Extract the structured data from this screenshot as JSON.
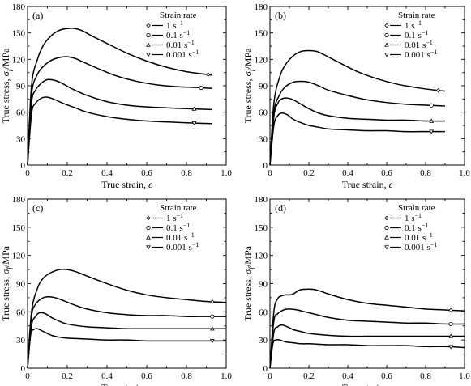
{
  "chart_data": [
    {
      "type": "line",
      "panel_label": "(a)",
      "xlabel": "True strain, ",
      "xlabel_symbol": "ε",
      "ylabel": "True stress, σ",
      "ylabel_sub": "f",
      "ylabel_unit": "/MPa",
      "xlim": [
        0,
        1.0
      ],
      "ylim": [
        0,
        180
      ],
      "xticks": [
        "0",
        "0.2",
        "0.4",
        "0.6",
        "0.8",
        "1.0"
      ],
      "yticks": [
        "0",
        "30",
        "60",
        "90",
        "120",
        "150",
        "180"
      ],
      "legend": {
        "title": "Strain rate",
        "items": [
          {
            "label": "1 s",
            "sup": "−1",
            "marker": "diamond"
          },
          {
            "label": "0.1 s",
            "sup": "−1",
            "marker": "circle"
          },
          {
            "label": "0.01 s",
            "sup": "−1",
            "marker": "triangle-up"
          },
          {
            "label": "0.001 s",
            "sup": "−1",
            "marker": "triangle-down"
          }
        ]
      },
      "series": [
        {
          "marker": "diamond",
          "x": [
            0,
            0.02,
            0.05,
            0.08,
            0.12,
            0.16,
            0.2,
            0.24,
            0.28,
            0.32,
            0.4,
            0.5,
            0.6,
            0.7,
            0.8,
            0.9,
            0.93
          ],
          "y": [
            0,
            90,
            120,
            136,
            147,
            153,
            155,
            155,
            152,
            147,
            138,
            127,
            118,
            111,
            106,
            103,
            102
          ]
        },
        {
          "marker": "circle",
          "x": [
            0,
            0.02,
            0.05,
            0.08,
            0.12,
            0.16,
            0.2,
            0.24,
            0.28,
            0.35,
            0.45,
            0.55,
            0.65,
            0.75,
            0.85,
            0.93
          ],
          "y": [
            0,
            80,
            103,
            112,
            119,
            122,
            123,
            121,
            117,
            110,
            101,
            95,
            91,
            89,
            88,
            87
          ]
        },
        {
          "marker": "triangle-up",
          "x": [
            0,
            0.02,
            0.04,
            0.07,
            0.1,
            0.14,
            0.18,
            0.22,
            0.3,
            0.4,
            0.5,
            0.6,
            0.7,
            0.8,
            0.93
          ],
          "y": [
            0,
            70,
            85,
            93,
            97,
            96,
            92,
            87,
            79,
            72,
            68,
            66,
            65,
            64,
            63
          ]
        },
        {
          "marker": "triangle-down",
          "x": [
            0,
            0.02,
            0.04,
            0.07,
            0.1,
            0.14,
            0.18,
            0.24,
            0.3,
            0.4,
            0.5,
            0.6,
            0.7,
            0.8,
            0.93
          ],
          "y": [
            0,
            58,
            70,
            76,
            77,
            74,
            70,
            65,
            60,
            55,
            52,
            50,
            49,
            48,
            47
          ]
        }
      ]
    },
    {
      "type": "line",
      "panel_label": "(b)",
      "xlabel": "True strain, ",
      "xlabel_symbol": "ε",
      "ylabel": "True stress, σ",
      "ylabel_sub": "f",
      "ylabel_unit": "/MPa",
      "xlim": [
        0,
        1.0
      ],
      "ylim": [
        0,
        180
      ],
      "xticks": [
        "0",
        "0.2",
        "0.4",
        "0.6",
        "0.8",
        "1.0"
      ],
      "yticks": [
        "0",
        "30",
        "60",
        "90",
        "120",
        "150",
        "180"
      ],
      "legend": {
        "title": "Strain rate",
        "items": [
          {
            "label": "1 s",
            "sup": "−1",
            "marker": "diamond"
          },
          {
            "label": "0.1 s",
            "sup": "−1",
            "marker": "circle"
          },
          {
            "label": "0.01 s",
            "sup": "−1",
            "marker": "triangle-up"
          },
          {
            "label": "0.001 s",
            "sup": "−1",
            "marker": "triangle-down"
          }
        ]
      },
      "series": [
        {
          "marker": "diamond",
          "x": [
            0,
            0.02,
            0.05,
            0.08,
            0.12,
            0.16,
            0.2,
            0.24,
            0.28,
            0.35,
            0.45,
            0.55,
            0.65,
            0.75,
            0.85,
            0.9
          ],
          "y": [
            0,
            70,
            100,
            114,
            124,
            129,
            130,
            129,
            125,
            117,
            106,
            98,
            92,
            88,
            85,
            84
          ]
        },
        {
          "marker": "circle",
          "x": [
            0,
            0.02,
            0.05,
            0.08,
            0.12,
            0.16,
            0.2,
            0.25,
            0.3,
            0.4,
            0.5,
            0.6,
            0.7,
            0.8,
            0.9
          ],
          "y": [
            0,
            60,
            80,
            89,
            94,
            95,
            94,
            90,
            85,
            79,
            74,
            71,
            69,
            68,
            67
          ]
        },
        {
          "marker": "triangle-up",
          "x": [
            0,
            0.02,
            0.04,
            0.06,
            0.09,
            0.12,
            0.16,
            0.2,
            0.25,
            0.3,
            0.4,
            0.5,
            0.6,
            0.7,
            0.8,
            0.9
          ],
          "y": [
            0,
            55,
            70,
            75,
            76,
            74,
            69,
            64,
            59,
            56,
            53,
            52,
            51,
            51,
            50,
            50
          ]
        },
        {
          "marker": "triangle-down",
          "x": [
            0,
            0.02,
            0.04,
            0.06,
            0.09,
            0.12,
            0.16,
            0.2,
            0.25,
            0.3,
            0.4,
            0.5,
            0.6,
            0.7,
            0.8,
            0.9
          ],
          "y": [
            0,
            45,
            56,
            59,
            57,
            52,
            48,
            45,
            43,
            41,
            40,
            39,
            39,
            38,
            38,
            38
          ]
        }
      ]
    },
    {
      "type": "line",
      "panel_label": "(c)",
      "xlabel": "True strain, ",
      "xlabel_symbol": "ε",
      "ylabel": "True stress, σ",
      "ylabel_sub": "f",
      "ylabel_unit": "/MPa",
      "xlim": [
        0,
        1.0
      ],
      "ylim": [
        0,
        180
      ],
      "xticks": [
        "0",
        "0.2",
        "0.4",
        "0.6",
        "0.8",
        "1.0"
      ],
      "yticks": [
        "0",
        "30",
        "60",
        "90",
        "120",
        "150",
        "180"
      ],
      "legend": {
        "title": "Strain rate",
        "items": [
          {
            "label": "1 s",
            "sup": "−1",
            "marker": "diamond"
          },
          {
            "label": "0.1 s",
            "sup": "−1",
            "marker": "circle"
          },
          {
            "label": "0.01 s",
            "sup": "−1",
            "marker": "triangle-up"
          },
          {
            "label": "0.001 s",
            "sup": "−1",
            "marker": "triangle-down"
          }
        ]
      },
      "series": [
        {
          "marker": "diamond",
          "x": [
            0,
            0.02,
            0.05,
            0.08,
            0.12,
            0.16,
            0.2,
            0.24,
            0.3,
            0.4,
            0.5,
            0.6,
            0.7,
            0.8,
            0.9,
            1.0
          ],
          "y": [
            0,
            60,
            85,
            96,
            102,
            105,
            105,
            103,
            98,
            90,
            83,
            78,
            75,
            73,
            71,
            70
          ]
        },
        {
          "marker": "circle",
          "x": [
            0,
            0.02,
            0.04,
            0.07,
            0.1,
            0.14,
            0.18,
            0.24,
            0.3,
            0.4,
            0.5,
            0.6,
            0.7,
            0.8,
            0.9,
            1.0
          ],
          "y": [
            0,
            55,
            68,
            74,
            76,
            75,
            72,
            67,
            63,
            59,
            57,
            56,
            56,
            55,
            55,
            55
          ]
        },
        {
          "marker": "triangle-up",
          "x": [
            0,
            0.02,
            0.04,
            0.06,
            0.09,
            0.12,
            0.16,
            0.2,
            0.3,
            0.4,
            0.5,
            0.6,
            0.7,
            0.8,
            0.9,
            1.0
          ],
          "y": [
            0,
            45,
            55,
            59,
            58,
            54,
            50,
            47,
            44,
            43,
            42,
            42,
            42,
            42,
            42,
            42
          ]
        },
        {
          "marker": "triangle-down",
          "x": [
            0,
            0.015,
            0.03,
            0.05,
            0.08,
            0.12,
            0.16,
            0.2,
            0.3,
            0.4,
            0.5,
            0.6,
            0.7,
            0.8,
            0.9,
            1.0
          ],
          "y": [
            0,
            35,
            41,
            42,
            39,
            35,
            33,
            32,
            31,
            30,
            30,
            29,
            29,
            29,
            29,
            29
          ]
        }
      ]
    },
    {
      "type": "line",
      "panel_label": "(d)",
      "xlabel": "True strain, ",
      "xlabel_symbol": "ε",
      "ylabel": "True stress, σ",
      "ylabel_sub": "f",
      "ylabel_unit": "/MPa",
      "xlim": [
        0,
        1.0
      ],
      "ylim": [
        0,
        180
      ],
      "xticks": [
        "0",
        "0.2",
        "0.4",
        "0.6",
        "0.8",
        "1.0"
      ],
      "yticks": [
        "0",
        "30",
        "60",
        "90",
        "120",
        "150",
        "180"
      ],
      "legend": {
        "title": "Strain rate",
        "items": [
          {
            "label": "1 s",
            "sup": "−1",
            "marker": "diamond"
          },
          {
            "label": "0.1 s",
            "sup": "−1",
            "marker": "circle"
          },
          {
            "label": "0.01 s",
            "sup": "−1",
            "marker": "triangle-up"
          },
          {
            "label": "0.001 s",
            "sup": "−1",
            "marker": "triangle-down"
          }
        ]
      },
      "series": [
        {
          "marker": "diamond",
          "x": [
            0,
            0.02,
            0.04,
            0.06,
            0.08,
            0.1,
            0.12,
            0.15,
            0.18,
            0.22,
            0.26,
            0.3,
            0.4,
            0.5,
            0.6,
            0.7,
            0.8,
            0.9,
            1.0
          ],
          "y": [
            0,
            60,
            74,
            77,
            78,
            78,
            79,
            83,
            84,
            84,
            82,
            79,
            73,
            69,
            67,
            65,
            63,
            62,
            61
          ]
        },
        {
          "marker": "circle",
          "x": [
            0,
            0.02,
            0.04,
            0.07,
            0.1,
            0.14,
            0.18,
            0.24,
            0.3,
            0.4,
            0.5,
            0.6,
            0.7,
            0.8,
            0.9,
            1.0
          ],
          "y": [
            0,
            50,
            58,
            62,
            63,
            62,
            60,
            57,
            54,
            51,
            50,
            49,
            48,
            48,
            47,
            47
          ]
        },
        {
          "marker": "triangle-up",
          "x": [
            0,
            0.02,
            0.04,
            0.06,
            0.09,
            0.12,
            0.16,
            0.2,
            0.3,
            0.4,
            0.5,
            0.6,
            0.7,
            0.8,
            0.9,
            1.0
          ],
          "y": [
            0,
            38,
            44,
            46,
            44,
            41,
            39,
            37,
            35,
            34,
            34,
            34,
            34,
            34,
            34,
            34
          ]
        },
        {
          "marker": "triangle-down",
          "x": [
            0,
            0.015,
            0.03,
            0.05,
            0.08,
            0.12,
            0.16,
            0.2,
            0.3,
            0.4,
            0.5,
            0.6,
            0.7,
            0.8,
            0.9,
            1.0
          ],
          "y": [
            0,
            26,
            30,
            30,
            28,
            27,
            26,
            26,
            25,
            25,
            24,
            24,
            24,
            23,
            23,
            22
          ]
        }
      ]
    }
  ]
}
